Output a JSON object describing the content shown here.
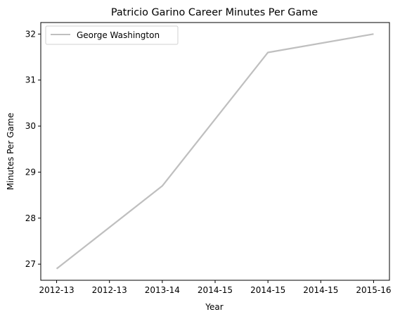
{
  "chart_data": {
    "type": "line",
    "title": "Patricio Garino Career Minutes Per Game",
    "xlabel": "Year",
    "ylabel": "Minutes Per Game",
    "x": [
      0,
      1,
      2,
      3
    ],
    "x_tick_values": [
      0,
      0.5,
      1,
      1.5,
      2,
      2.5,
      3
    ],
    "x_tick_labels": [
      "2012-13",
      "2012-13",
      "2013-14",
      "2014-15",
      "2014-15",
      "2014-15",
      "2015-16"
    ],
    "xlim": [
      -0.15,
      3.15
    ],
    "ylim": [
      26.65,
      32.25
    ],
    "y_ticks": [
      27,
      28,
      29,
      30,
      31,
      32
    ],
    "series": [
      {
        "name": "George Washington",
        "values": [
          26.9,
          28.7,
          31.6,
          32.0
        ],
        "color": "#bfbfbf"
      }
    ],
    "legend": "upper-left",
    "grid": false
  }
}
